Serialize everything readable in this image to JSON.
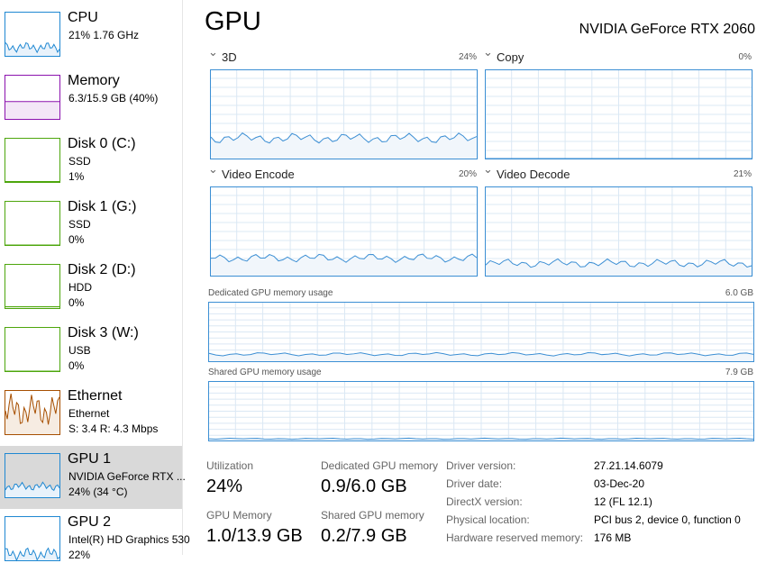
{
  "sidebar": {
    "items": [
      {
        "title": "CPU",
        "lines": [
          "21%  1.76 GHz"
        ]
      },
      {
        "title": "Memory",
        "lines": [
          "6.3/15.9 GB (40%)"
        ]
      },
      {
        "title": "Disk 0 (C:)",
        "lines": [
          "SSD",
          "1%"
        ]
      },
      {
        "title": "Disk 1 (G:)",
        "lines": [
          "SSD",
          "0%"
        ]
      },
      {
        "title": "Disk 2 (D:)",
        "lines": [
          "HDD",
          "0%"
        ]
      },
      {
        "title": "Disk 3 (W:)",
        "lines": [
          "USB",
          "0%"
        ]
      },
      {
        "title": "Ethernet",
        "lines": [
          "Ethernet",
          "S: 3.4  R: 4.3 Mbps"
        ]
      },
      {
        "title": "GPU 1",
        "lines": [
          "NVIDIA GeForce RTX ...",
          "24% (34 °C)"
        ]
      },
      {
        "title": "GPU 2",
        "lines": [
          "Intel(R) HD Graphics 530",
          "22%"
        ]
      }
    ]
  },
  "main": {
    "title": "GPU",
    "gpu_name": "NVIDIA GeForce RTX 2060",
    "engines": [
      {
        "label": "3D",
        "value": "24%"
      },
      {
        "label": "Copy",
        "value": "0%"
      },
      {
        "label": "Video Encode",
        "value": "20%"
      },
      {
        "label": "Video Decode",
        "value": "21%"
      }
    ],
    "memory_graphs": [
      {
        "label": "Dedicated GPU memory usage",
        "max": "6.0 GB"
      },
      {
        "label": "Shared GPU memory usage",
        "max": "7.9 GB"
      }
    ],
    "stats": [
      {
        "label": "Utilization",
        "value": "24%"
      },
      {
        "label": "Dedicated GPU memory",
        "value": "0.9/6.0 GB"
      },
      {
        "label": "GPU Memory",
        "value": "1.0/13.9 GB"
      },
      {
        "label": "Shared GPU memory",
        "value": "0.2/7.9 GB"
      }
    ],
    "details": [
      {
        "label": "Driver version:",
        "value": "27.21.14.6079"
      },
      {
        "label": "Driver date:",
        "value": "03-Dec-20"
      },
      {
        "label": "DirectX version:",
        "value": "12 (FL 12.1)"
      },
      {
        "label": "Physical location:",
        "value": "PCI bus 2, device 0, function 0"
      },
      {
        "label": "Hardware reserved memory:",
        "value": "176 MB"
      }
    ]
  }
}
